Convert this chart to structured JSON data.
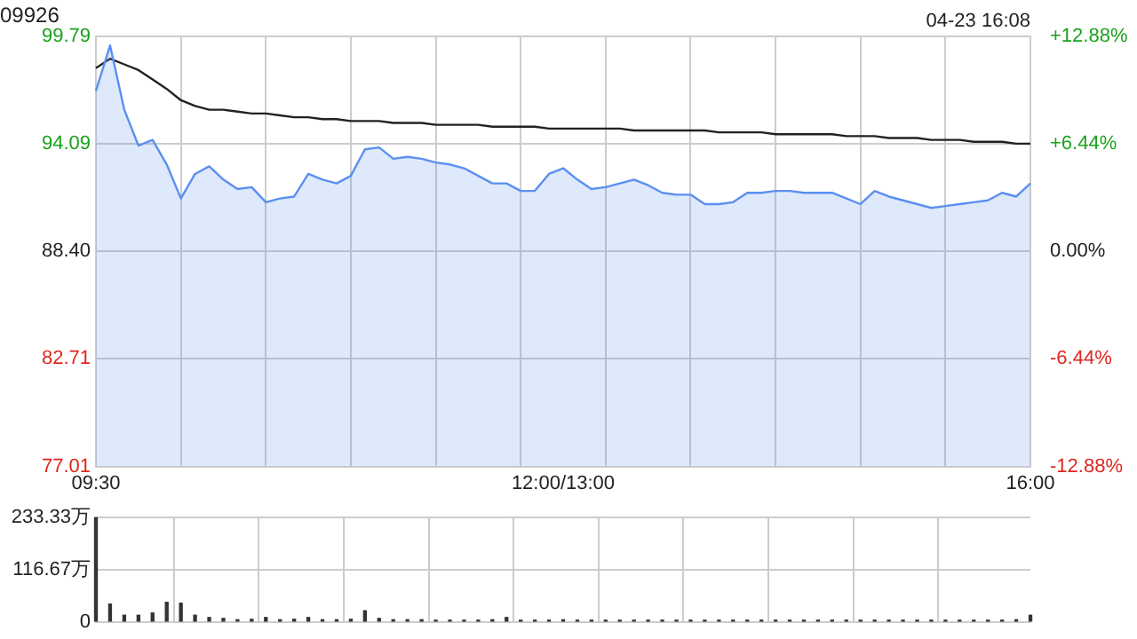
{
  "chart_data": [
    {
      "type": "area",
      "title": "09926",
      "annotations": [
        "04-23 16:08"
      ],
      "categories": [
        "09:30",
        null,
        null,
        null,
        null,
        null,
        null,
        null,
        null,
        null,
        null,
        null,
        null,
        null,
        null,
        null,
        null,
        null,
        null,
        null,
        null,
        null,
        null,
        null,
        null,
        null,
        null,
        null,
        null,
        null,
        null,
        null,
        null,
        "12:00/13:00",
        null,
        null,
        null,
        null,
        null,
        null,
        null,
        null,
        null,
        null,
        null,
        null,
        null,
        null,
        null,
        null,
        null,
        null,
        null,
        null,
        null,
        null,
        null,
        null,
        null,
        null,
        null,
        null,
        null,
        null,
        null,
        null,
        "16:00"
      ],
      "ylim": [
        77.01,
        99.79
      ],
      "yticks": [
        77.01,
        82.71,
        {
          "value": 88.4,
          "label": "88.40"
        },
        94.09,
        99.79
      ],
      "y2lim": [
        -12.88,
        12.88
      ],
      "y2ticks": [
        {
          "value": -12.88,
          "label": "-12.88%"
        },
        {
          "value": -6.44,
          "label": "-6.44%"
        },
        {
          "value": 0,
          "label": "0.00%"
        },
        {
          "value": 6.44,
          "label": "+6.44%"
        },
        {
          "value": 12.88,
          "label": "+12.88%"
        }
      ],
      "grid": true,
      "series": [
        {
          "color": "#5b8ff0",
          "values": [
            96.9,
            99.3,
            95.9,
            94.0,
            94.3,
            93.0,
            91.2,
            92.5,
            92.9,
            92.2,
            91.7,
            91.8,
            91.0,
            91.2,
            91.3,
            92.5,
            92.2,
            92.0,
            92.4,
            93.8,
            93.9,
            93.3,
            93.4,
            93.3,
            93.1,
            93.0,
            92.8,
            92.4,
            92.0,
            92.0,
            91.6,
            91.6,
            92.5,
            92.8,
            92.2,
            91.7,
            91.8,
            92.0,
            92.2,
            91.9,
            91.5,
            91.4,
            91.4,
            90.9,
            90.9,
            91.0,
            91.5,
            91.5,
            91.6,
            91.6,
            91.5,
            91.5,
            91.5,
            91.2,
            90.9,
            91.6,
            91.3,
            91.1,
            90.9,
            90.7,
            90.8,
            90.9,
            91.0,
            91.1,
            91.5,
            91.3,
            92.0
          ]
        },
        {
          "type": "line",
          "color": "#222222",
          "values": [
            98.1,
            98.6,
            98.3,
            98.0,
            97.5,
            97.0,
            96.4,
            96.1,
            95.9,
            95.9,
            95.8,
            95.7,
            95.7,
            95.6,
            95.5,
            95.5,
            95.4,
            95.4,
            95.3,
            95.3,
            95.3,
            95.2,
            95.2,
            95.2,
            95.1,
            95.1,
            95.1,
            95.1,
            95.0,
            95.0,
            95.0,
            95.0,
            94.9,
            94.9,
            94.9,
            94.9,
            94.9,
            94.9,
            94.8,
            94.8,
            94.8,
            94.8,
            94.8,
            94.8,
            94.7,
            94.7,
            94.7,
            94.7,
            94.6,
            94.6,
            94.6,
            94.6,
            94.6,
            94.5,
            94.5,
            94.5,
            94.4,
            94.4,
            94.4,
            94.3,
            94.3,
            94.3,
            94.2,
            94.2,
            94.2,
            94.1,
            94.1
          ]
        }
      ]
    },
    {
      "type": "bar",
      "tick_labels": "y",
      "grid": true,
      "categories": [
        null,
        null,
        null,
        null,
        null,
        null,
        null,
        null,
        null,
        null,
        null,
        null,
        null,
        null,
        null,
        null,
        null,
        null,
        null,
        null,
        null,
        null,
        null,
        null,
        null,
        null,
        null,
        null,
        null,
        null,
        null,
        null,
        null,
        null,
        null,
        null,
        null,
        null,
        null,
        null,
        null,
        null,
        null,
        null,
        null,
        null,
        null,
        null,
        null,
        null,
        null,
        null,
        null,
        null,
        null,
        null,
        null,
        null,
        null,
        null,
        null,
        null,
        null,
        null,
        null,
        null,
        null
      ],
      "ylim": [
        0,
        233.33
      ],
      "yticks": [
        0,
        {
          "value": 116.67,
          "label": "116.67万"
        },
        {
          "value": 233.33,
          "label": "233.33万"
        }
      ],
      "series": [
        {
          "color": "#333333",
          "values": [
            233,
            40,
            15,
            15,
            20,
            44,
            42,
            15,
            10,
            8,
            5,
            6,
            10,
            5,
            6,
            10,
            5,
            5,
            6,
            25,
            8,
            5,
            5,
            5,
            4,
            4,
            4,
            4,
            5,
            10,
            4,
            4,
            4,
            5,
            4,
            4,
            4,
            4,
            4,
            4,
            4,
            4,
            4,
            4,
            4,
            4,
            4,
            4,
            4,
            4,
            4,
            4,
            4,
            4,
            4,
            4,
            4,
            4,
            4,
            4,
            4,
            4,
            4,
            4,
            4,
            5,
            15
          ]
        }
      ]
    }
  ]
}
